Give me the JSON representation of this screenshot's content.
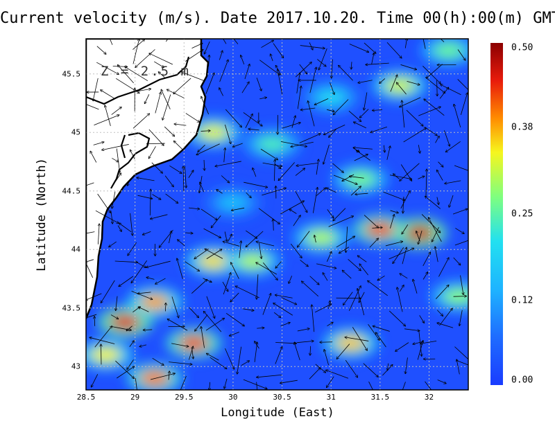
{
  "title": "Current velocity (m/s). Date 2017.10.20. Time 00(h):00(m) GMT",
  "depth_label": "Z = 2.5 m",
  "chart_data": {
    "type": "heatmap",
    "title": "Current velocity (m/s). Date 2017.10.20. Time 00(h):00(m) GMT",
    "xlabel": "Longitude (East)",
    "ylabel": "Latitude (North)",
    "xlim": [
      28.5,
      32.4
    ],
    "ylim": [
      42.8,
      45.8
    ],
    "x_ticks": [
      "28.5",
      "29",
      "29.5",
      "30",
      "30.5",
      "31",
      "31.5",
      "32"
    ],
    "y_ticks": [
      "43",
      "43.5",
      "44",
      "44.5",
      "45",
      "45.5"
    ],
    "grid": true,
    "colorbar": {
      "range": [
        0.0,
        0.5
      ],
      "ticks": [
        "0.00",
        "0.12",
        "0.25",
        "0.38",
        "0.50"
      ],
      "colors": [
        "#1a3cff",
        "#1e90ff",
        "#22e0f0",
        "#7fff7f",
        "#f6f61e",
        "#ff8c00",
        "#e81b0c",
        "#8b0000"
      ]
    },
    "hotspots": [
      {
        "lon": 31.9,
        "lat": 44.14,
        "value": 0.46
      },
      {
        "lon": 31.5,
        "lat": 44.17,
        "value": 0.42
      },
      {
        "lon": 28.9,
        "lat": 43.38,
        "value": 0.45
      },
      {
        "lon": 29.6,
        "lat": 43.2,
        "value": 0.42
      },
      {
        "lon": 29.2,
        "lat": 43.55,
        "value": 0.38
      },
      {
        "lon": 29.8,
        "lat": 43.9,
        "value": 0.35
      },
      {
        "lon": 31.2,
        "lat": 43.2,
        "value": 0.36
      },
      {
        "lon": 31.7,
        "lat": 45.4,
        "value": 0.32
      },
      {
        "lon": 29.8,
        "lat": 45.0,
        "value": 0.33
      },
      {
        "lon": 30.9,
        "lat": 44.1,
        "value": 0.3
      },
      {
        "lon": 28.7,
        "lat": 43.1,
        "value": 0.34
      },
      {
        "lon": 30.2,
        "lat": 43.9,
        "value": 0.3
      },
      {
        "lon": 32.3,
        "lat": 43.6,
        "value": 0.28
      },
      {
        "lon": 31.3,
        "lat": 44.6,
        "value": 0.27
      },
      {
        "lon": 30.4,
        "lat": 44.9,
        "value": 0.24
      },
      {
        "lon": 29.2,
        "lat": 42.9,
        "value": 0.4
      },
      {
        "lon": 32.2,
        "lat": 45.7,
        "value": 0.26
      },
      {
        "lon": 30.0,
        "lat": 44.4,
        "value": 0.16
      },
      {
        "lon": 31.0,
        "lat": 45.3,
        "value": 0.2
      }
    ]
  },
  "colors": {
    "land": "#ffffff",
    "coast": "#000000",
    "grid": "#bfbfbf"
  }
}
